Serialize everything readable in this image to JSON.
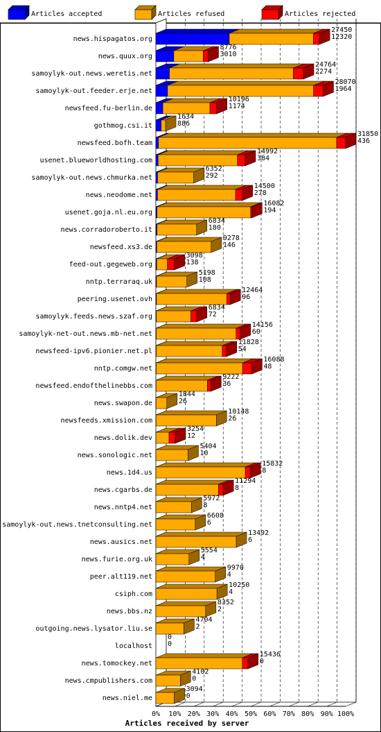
{
  "chart_data": {
    "type": "bar",
    "xlabel": "Articles received by server",
    "legend": {
      "placement": "top",
      "entries": [
        {
          "name": "Articles accepted",
          "color": "#0000ff"
        },
        {
          "name": "Articles refused",
          "color": "#ffaa00"
        },
        {
          "name": "Articles rejected",
          "color": "#ff0000"
        }
      ]
    },
    "x_ticks": [
      "0%",
      "10%",
      "20%",
      "30%",
      "40%",
      "50%",
      "60%",
      "70%",
      "80%",
      "90%",
      "100%"
    ],
    "xlim": [
      0,
      31850
    ],
    "grid": true,
    "rows": [
      {
        "server": "news.hispagatos.org",
        "accepted": 12320,
        "refused": 14100,
        "rejected": 1030,
        "total": "27450",
        "total_rejected": "12320"
      },
      {
        "server": "news.quux.org",
        "accepted": 3010,
        "refused": 4950,
        "rejected": 816,
        "total": "8776",
        "total_rejected": "3010"
      },
      {
        "server": "samoylyk-out.news.weretis.net",
        "accepted": 2274,
        "refused": 20800,
        "rejected": 1690,
        "total": "24764",
        "total_rejected": "2274"
      },
      {
        "server": "samoylyk-out.feeder.erje.net",
        "accepted": 1964,
        "refused": 24500,
        "rejected": 1606,
        "total": "28070",
        "total_rejected": "1964"
      },
      {
        "server": "newsfeed.fu-berlin.de",
        "accepted": 1174,
        "refused": 7900,
        "rejected": 1122,
        "total": "10196",
        "total_rejected": "1174"
      },
      {
        "server": "gothmog.csi.it",
        "accepted": 886,
        "refused": 748,
        "rejected": 0,
        "total": "1634",
        "total_rejected": "886"
      },
      {
        "server": "newsfeed.bofh.team",
        "accepted": 436,
        "refused": 29900,
        "rejected": 1514,
        "total": "31850",
        "total_rejected": "436"
      },
      {
        "server": "usenet.blueworldhosting.com",
        "accepted": 384,
        "refused": 13300,
        "rejected": 1308,
        "total": "14992",
        "total_rejected": "384"
      },
      {
        "server": "samoylyk-out.news.chmurka.net",
        "accepted": 292,
        "refused": 6060,
        "rejected": 0,
        "total": "6352",
        "total_rejected": "292"
      },
      {
        "server": "news.neodome.net",
        "accepted": 278,
        "refused": 13100,
        "rejected": 1122,
        "total": "14500",
        "total_rejected": "278"
      },
      {
        "server": "usenet.goja.nl.eu.org",
        "accepted": 194,
        "refused": 15700,
        "rejected": 188,
        "total": "16082",
        "total_rejected": "194"
      },
      {
        "server": "news.corradoroberto.it",
        "accepted": 180,
        "refused": 6654,
        "rejected": 0,
        "total": "6834",
        "total_rejected": "180"
      },
      {
        "server": "newsfeed.xs3.de",
        "accepted": 146,
        "refused": 9132,
        "rejected": 0,
        "total": "9278",
        "total_rejected": "146"
      },
      {
        "server": "feed-out.gegeweb.org",
        "accepted": 138,
        "refused": 1800,
        "rejected": 1160,
        "total": "3098",
        "total_rejected": "138"
      },
      {
        "server": "nntp.terraraq.uk",
        "accepted": 108,
        "refused": 5090,
        "rejected": 0,
        "total": "5198",
        "total_rejected": "108"
      },
      {
        "server": "peering.usenet.ovh",
        "accepted": 96,
        "refused": 11800,
        "rejected": 568,
        "total": "12464",
        "total_rejected": "96"
      },
      {
        "server": "samoylyk.feeds.news.szaf.org",
        "accepted": 72,
        "refused": 5800,
        "rejected": 962,
        "total": "6834",
        "total_rejected": "72"
      },
      {
        "server": "samoylyk-net-out.news.mb-net.net",
        "accepted": 60,
        "refused": 13400,
        "rejected": 696,
        "total": "14156",
        "total_rejected": "60"
      },
      {
        "server": "newsfeed-ipv6.pionier.net.pl",
        "accepted": 54,
        "refused": 11100,
        "rejected": 674,
        "total": "11828",
        "total_rejected": "54"
      },
      {
        "server": "nntp.comgw.net",
        "accepted": 48,
        "refused": 14500,
        "rejected": 1540,
        "total": "16088",
        "total_rejected": "48"
      },
      {
        "server": "newsfeed.endofthelinebbs.com",
        "accepted": 36,
        "refused": 8600,
        "rejected": 586,
        "total": "9222",
        "total_rejected": "36"
      },
      {
        "server": "news.swapon.de",
        "accepted": 26,
        "refused": 1818,
        "rejected": 0,
        "total": "1844",
        "total_rejected": "26"
      },
      {
        "server": "newsfeeds.xmission.com",
        "accepted": 26,
        "refused": 10122,
        "rejected": 0,
        "total": "10148",
        "total_rejected": "26"
      },
      {
        "server": "news.dolik.dev",
        "accepted": 12,
        "refused": 2200,
        "rejected": 1042,
        "total": "3254",
        "total_rejected": "12"
      },
      {
        "server": "news.sonologic.net",
        "accepted": 10,
        "refused": 5394,
        "rejected": 0,
        "total": "5404",
        "total_rejected": "10"
      },
      {
        "server": "news.1d4.us",
        "accepted": 8,
        "refused": 15000,
        "rejected": 824,
        "total": "15832",
        "total_rejected": "8"
      },
      {
        "server": "news.cgarbs.de",
        "accepted": 8,
        "refused": 10500,
        "rejected": 786,
        "total": "11294",
        "total_rejected": "8"
      },
      {
        "server": "news.nntp4.net",
        "accepted": 8,
        "refused": 5964,
        "rejected": 0,
        "total": "5972",
        "total_rejected": "8"
      },
      {
        "server": "samoylyk-out.news.tnetconsulting.net",
        "accepted": 6,
        "refused": 6602,
        "rejected": 0,
        "total": "6608",
        "total_rejected": "6"
      },
      {
        "server": "news.ausics.net",
        "accepted": 6,
        "refused": 13486,
        "rejected": 0,
        "total": "13492",
        "total_rejected": "6"
      },
      {
        "server": "news.furie.org.uk",
        "accepted": 4,
        "refused": 5550,
        "rejected": 0,
        "total": "5554",
        "total_rejected": "4"
      },
      {
        "server": "peer.alt119.net",
        "accepted": 4,
        "refused": 9966,
        "rejected": 0,
        "total": "9970",
        "total_rejected": "4"
      },
      {
        "server": "csiph.com",
        "accepted": 4,
        "refused": 10246,
        "rejected": 0,
        "total": "10250",
        "total_rejected": "4"
      },
      {
        "server": "news.bbs.nz",
        "accepted": 2,
        "refused": 8350,
        "rejected": 0,
        "total": "8352",
        "total_rejected": "2"
      },
      {
        "server": "outgoing.news.lysator.liu.se",
        "accepted": 2,
        "refused": 4702,
        "rejected": 0,
        "total": "4704",
        "total_rejected": "2"
      },
      {
        "server": "localhost",
        "accepted": 0,
        "refused": 0,
        "rejected": 0,
        "total": "0",
        "total_rejected": "0"
      },
      {
        "server": "news.tomockey.net",
        "accepted": 0,
        "refused": 14500,
        "rejected": 936,
        "total": "15436",
        "total_rejected": "0"
      },
      {
        "server": "news.cmpublishers.com",
        "accepted": 0,
        "refused": 4102,
        "rejected": 0,
        "total": "4102",
        "total_rejected": "0"
      },
      {
        "server": "news.niel.me",
        "accepted": 0,
        "refused": 3094,
        "rejected": 0,
        "total": "3094",
        "total_rejected": "0"
      }
    ]
  }
}
